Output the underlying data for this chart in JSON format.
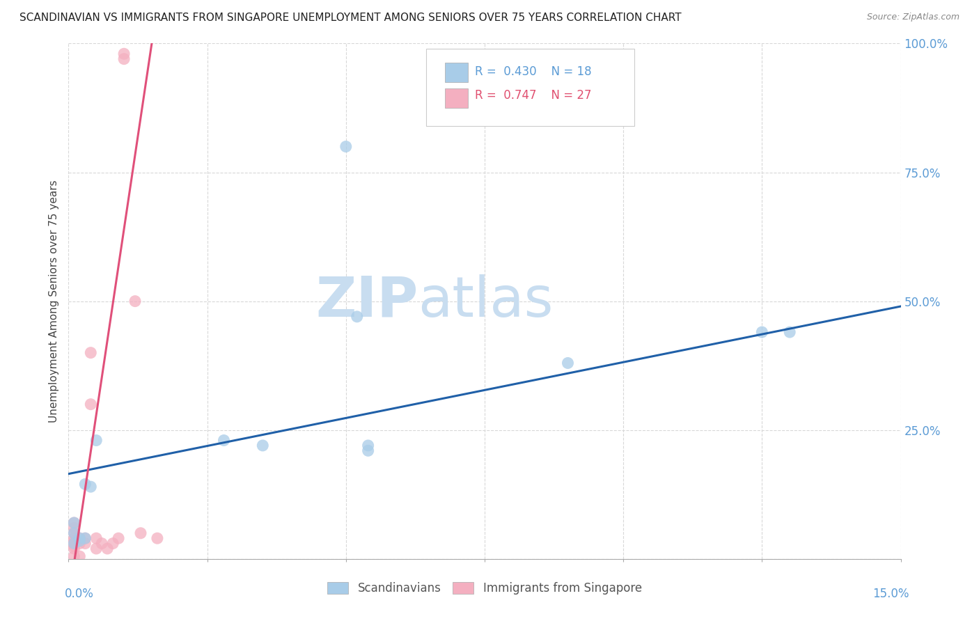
{
  "title": "SCANDINAVIAN VS IMMIGRANTS FROM SINGAPORE UNEMPLOYMENT AMONG SENIORS OVER 75 YEARS CORRELATION CHART",
  "source": "Source: ZipAtlas.com",
  "ylabel": "Unemployment Among Seniors over 75 years",
  "xlim": [
    0.0,
    0.15
  ],
  "ylim": [
    0.0,
    1.0
  ],
  "yticks": [
    0.0,
    0.25,
    0.5,
    0.75,
    1.0
  ],
  "ytick_labels": [
    "",
    "25.0%",
    "50.0%",
    "75.0%",
    "100.0%"
  ],
  "xticks": [
    0.0,
    0.025,
    0.05,
    0.075,
    0.1,
    0.125,
    0.15
  ],
  "blue_scatter_x": [
    0.001,
    0.001,
    0.002,
    0.003,
    0.004,
    0.005,
    0.028,
    0.035,
    0.05,
    0.052,
    0.054,
    0.054,
    0.09,
    0.125,
    0.13,
    0.001,
    0.002,
    0.003
  ],
  "blue_scatter_y": [
    0.03,
    0.05,
    0.04,
    0.04,
    0.14,
    0.23,
    0.23,
    0.22,
    0.8,
    0.47,
    0.22,
    0.21,
    0.38,
    0.44,
    0.44,
    0.07,
    0.035,
    0.145
  ],
  "pink_scatter_x": [
    0.001,
    0.001,
    0.001,
    0.001,
    0.001,
    0.001,
    0.001,
    0.001,
    0.001,
    0.002,
    0.002,
    0.002,
    0.003,
    0.003,
    0.004,
    0.004,
    0.005,
    0.005,
    0.006,
    0.007,
    0.008,
    0.009,
    0.01,
    0.01,
    0.012,
    0.013,
    0.016
  ],
  "pink_scatter_y": [
    0.02,
    0.025,
    0.03,
    0.035,
    0.04,
    0.05,
    0.06,
    0.07,
    0.005,
    0.03,
    0.04,
    0.005,
    0.03,
    0.04,
    0.3,
    0.4,
    0.02,
    0.04,
    0.03,
    0.02,
    0.03,
    0.04,
    0.97,
    0.98,
    0.5,
    0.05,
    0.04
  ],
  "blue_line_x0": 0.0,
  "blue_line_x1": 0.15,
  "blue_line_y0": 0.165,
  "blue_line_y1": 0.49,
  "pink_line_slope": 72.0,
  "pink_line_intercept": -0.08,
  "blue_color": "#a8cce8",
  "pink_color": "#f4afc0",
  "blue_line_color": "#2060a8",
  "pink_line_color": "#e0507a",
  "legend_blue_R": "0.430",
  "legend_blue_N": "18",
  "legend_pink_R": "0.747",
  "legend_pink_N": "27",
  "watermark_zip": "ZIP",
  "watermark_atlas": "atlas",
  "watermark_color": "#c8ddf0",
  "background_color": "#ffffff",
  "grid_color": "#d8d8d8"
}
